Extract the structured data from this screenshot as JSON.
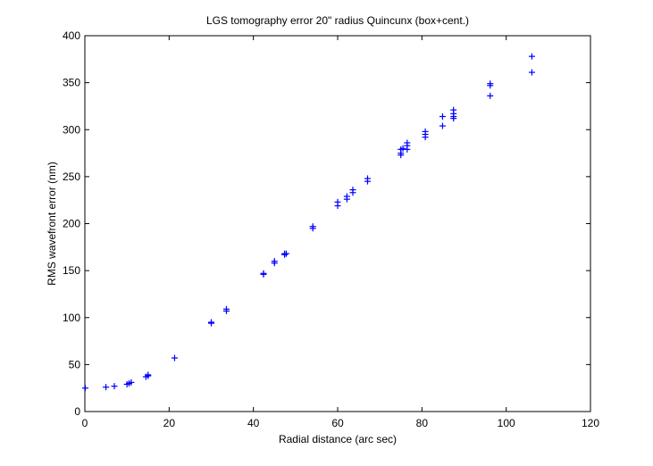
{
  "chart_data": {
    "type": "scatter",
    "title": "LGS tomography error 20\" radius Quincunx (box+cent.)",
    "xlabel": "Radial distance (arc sec)",
    "ylabel": "RMS wavefront error (nm)",
    "xlim": [
      0,
      120
    ],
    "ylim": [
      0,
      400
    ],
    "xticks": [
      0,
      20,
      40,
      60,
      80,
      100,
      120
    ],
    "yticks": [
      0,
      50,
      100,
      150,
      200,
      250,
      300,
      350,
      400
    ],
    "xtick_labels": [
      "0",
      "20",
      "40",
      "60",
      "80",
      "100",
      "120"
    ],
    "ytick_labels": [
      "0",
      "50",
      "100",
      "150",
      "200",
      "250",
      "300",
      "350",
      "400"
    ],
    "grid": false,
    "marker": "+",
    "color": "#0000ff",
    "series": [
      {
        "points": [
          [
            0.1,
            25
          ],
          [
            5,
            26
          ],
          [
            7,
            27
          ],
          [
            10,
            29
          ],
          [
            10.5,
            30
          ],
          [
            11,
            31
          ],
          [
            14.5,
            37
          ],
          [
            15,
            38
          ],
          [
            15,
            39
          ],
          [
            21.3,
            57
          ],
          [
            30,
            94
          ],
          [
            30,
            95
          ],
          [
            33.6,
            107
          ],
          [
            33.6,
            109
          ],
          [
            42.4,
            146
          ],
          [
            42.4,
            147
          ],
          [
            45,
            158
          ],
          [
            45,
            160
          ],
          [
            47.4,
            167
          ],
          [
            47.4,
            168
          ],
          [
            47.8,
            168
          ],
          [
            54.1,
            195
          ],
          [
            54.1,
            197
          ],
          [
            60,
            219
          ],
          [
            60,
            223
          ],
          [
            62.2,
            226
          ],
          [
            62.2,
            229
          ],
          [
            63.6,
            233
          ],
          [
            63.6,
            236
          ],
          [
            67.1,
            245
          ],
          [
            67.1,
            248
          ],
          [
            75,
            273
          ],
          [
            75,
            275
          ],
          [
            75,
            279
          ],
          [
            75.5,
            280
          ],
          [
            76.5,
            279
          ],
          [
            76.5,
            283
          ],
          [
            76.5,
            286
          ],
          [
            80.8,
            292
          ],
          [
            80.8,
            295
          ],
          [
            80.8,
            298
          ],
          [
            84.9,
            304
          ],
          [
            84.9,
            314
          ],
          [
            87.5,
            312
          ],
          [
            87.5,
            314
          ],
          [
            87.5,
            317
          ],
          [
            87.5,
            321
          ],
          [
            96.2,
            336
          ],
          [
            96.2,
            347
          ],
          [
            96.2,
            349
          ],
          [
            106.1,
            361
          ],
          [
            106.1,
            378
          ]
        ]
      }
    ]
  }
}
